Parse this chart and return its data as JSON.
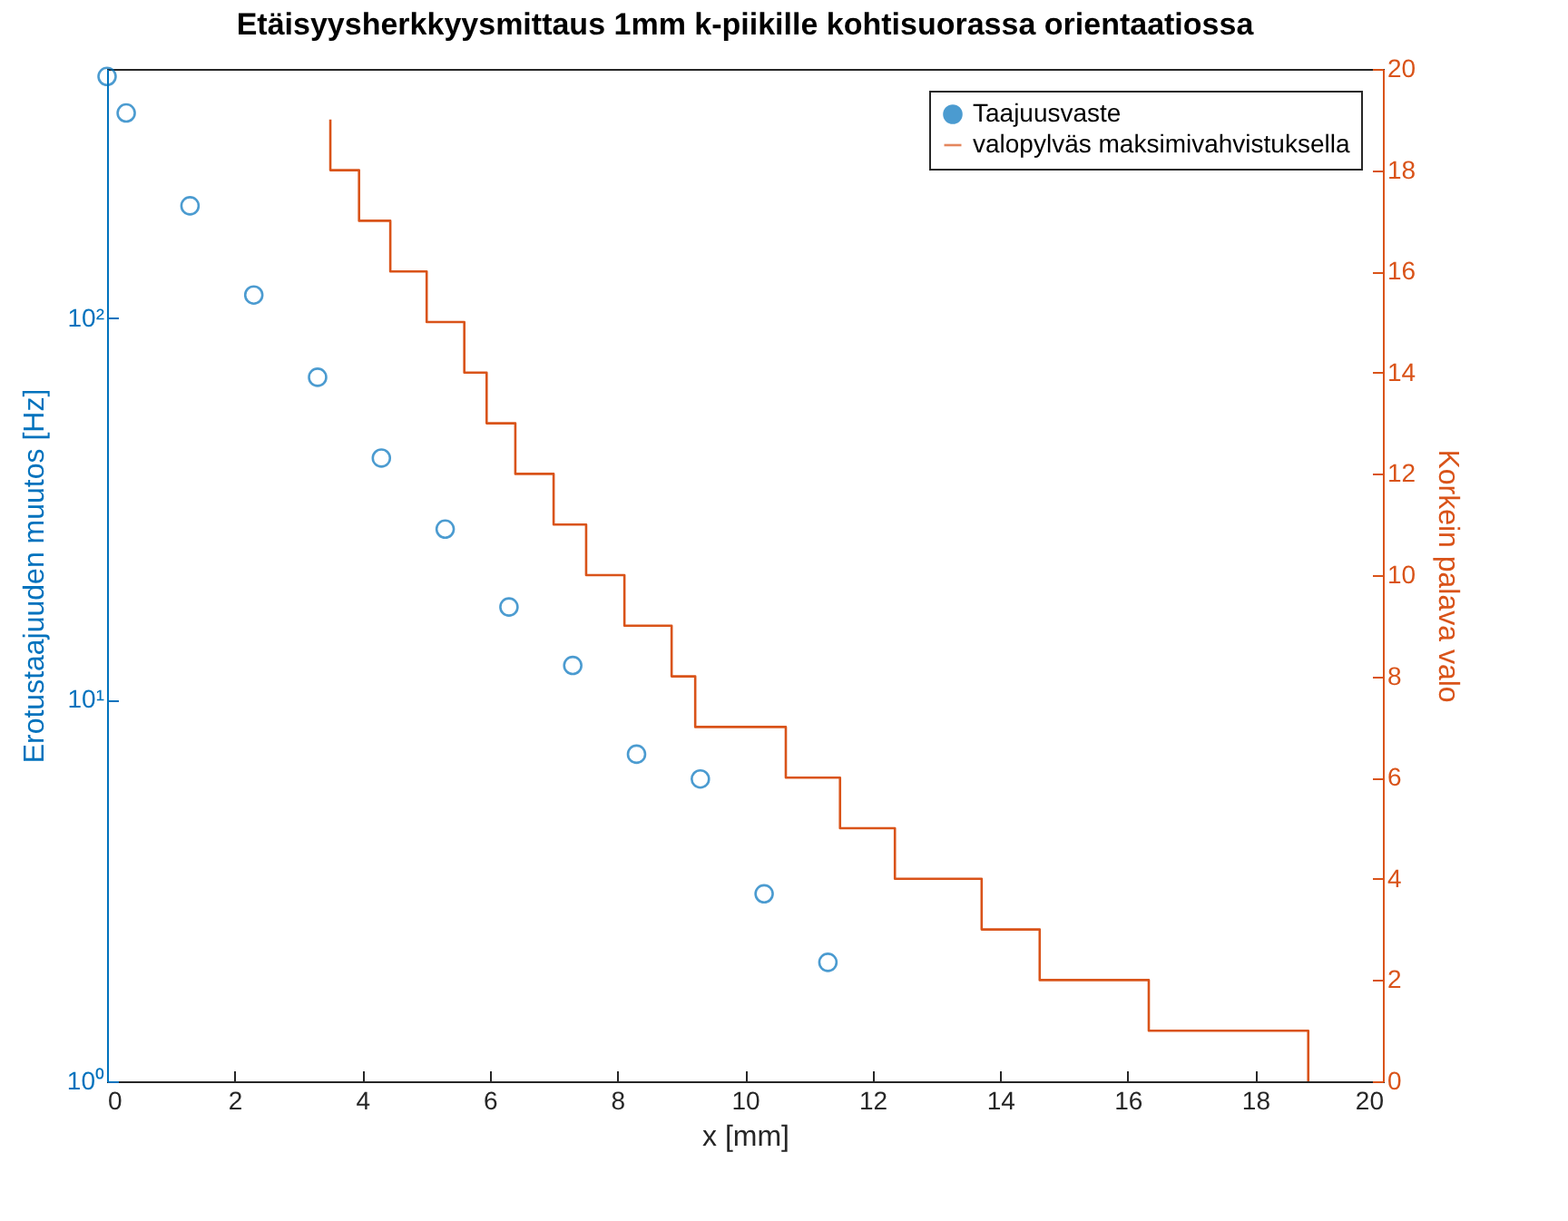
{
  "chart_data": {
    "type": "scatter",
    "title": "Etäisyysherkkyysmittaus 1mm k-piikille kohtisuorassa orientaatiossa",
    "xlabel": "x [mm]",
    "ylabel": "Erotustaajuuden muutos [Hz]",
    "y2label": "Korkein palava valo",
    "xlim": [
      0,
      20
    ],
    "xticks": [
      0,
      2,
      4,
      6,
      8,
      10,
      12,
      14,
      16,
      18,
      20
    ],
    "ylim": [
      1,
      450
    ],
    "yticks": [
      {
        "value": 1,
        "label": "10⁰"
      },
      {
        "value": 10,
        "label": "10¹"
      },
      {
        "value": 100,
        "label": "10²"
      }
    ],
    "log": "y",
    "y2lim": [
      0,
      20
    ],
    "y2ticks": [
      0,
      2,
      4,
      6,
      8,
      10,
      12,
      14,
      16,
      18,
      20
    ],
    "grid": false,
    "legend": "top right",
    "series": [
      {
        "name": "Taajuusvaste",
        "color": "#0072bd",
        "marker": "circle",
        "x": [
          0,
          0.3,
          1.3,
          2.3,
          3.3,
          4.3,
          5.3,
          6.3,
          7.3,
          8.3,
          9.3,
          10.3,
          11.3
        ],
        "values": [
          430,
          345,
          197,
          115,
          70,
          43,
          28,
          17.5,
          12.3,
          7.2,
          6.2,
          3.1,
          2.05
        ]
      },
      {
        "name": "valopylväs maksimivahvistuksella",
        "type": "step",
        "axis": "y2",
        "marker": "none",
        "color": "#d95319",
        "x": [
          3.5,
          3.5,
          3.95,
          4.44,
          5.01,
          5.6,
          5.95,
          6.4,
          7.0,
          7.51,
          8.11,
          8.85,
          9.22,
          10.64,
          11.49,
          12.35,
          13.71,
          14.62,
          16.33,
          18.83
        ],
        "values": [
          19,
          18,
          17,
          16,
          15,
          14,
          13,
          12,
          11,
          10,
          9,
          8,
          7,
          6,
          5,
          4,
          3,
          2,
          1,
          0
        ]
      }
    ]
  }
}
